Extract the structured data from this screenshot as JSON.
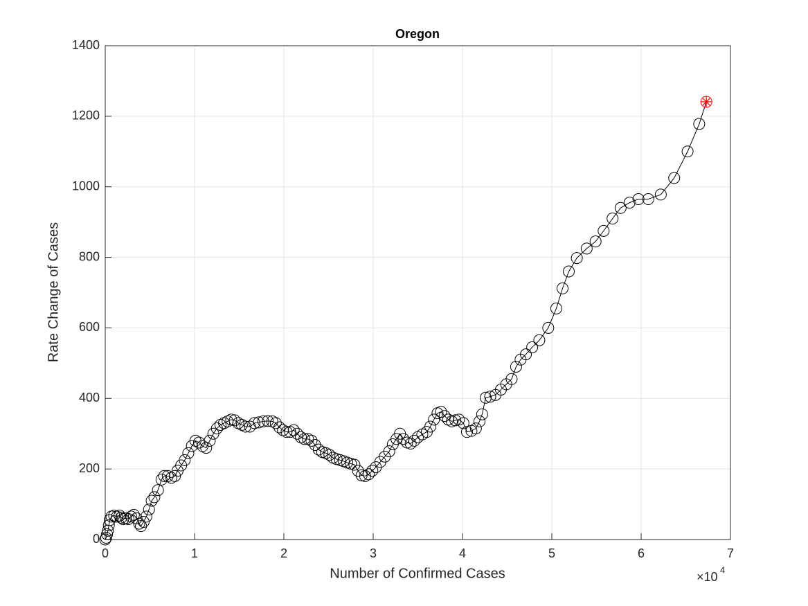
{
  "chart_data": {
    "type": "line",
    "title": "Oregon",
    "x_label": "Number of Confirmed Cases",
    "y_label": "Rate Change of Cases",
    "x_multiplier": "×10",
    "x_multiplier_exponent": "4",
    "x": [
      0,
      100,
      200,
      300,
      400,
      500,
      700,
      1000,
      1300,
      1600,
      1800,
      2000,
      2300,
      2600,
      2900,
      3200,
      3500,
      3800,
      4000,
      4300,
      4600,
      4900,
      5200,
      5500,
      5900,
      6300,
      6600,
      7000,
      7400,
      7800,
      8100,
      8500,
      8900,
      9300,
      9700,
      10100,
      10500,
      10900,
      11300,
      11700,
      12100,
      12500,
      12900,
      13300,
      13700,
      14100,
      14500,
      14900,
      15300,
      15700,
      16200,
      16700,
      17200,
      17700,
      18200,
      18700,
      19100,
      19500,
      19900,
      20300,
      20700,
      21100,
      21500,
      21900,
      22300,
      22700,
      23100,
      23500,
      23900,
      24300,
      24700,
      25100,
      25500,
      25900,
      26300,
      26700,
      27100,
      27500,
      27900,
      28300,
      28700,
      29100,
      29500,
      29900,
      30300,
      30800,
      31300,
      31800,
      32200,
      32600,
      33000,
      33400,
      33800,
      34200,
      34600,
      35000,
      35500,
      36000,
      36400,
      36800,
      37200,
      37600,
      38000,
      38400,
      38800,
      39200,
      39600,
      40100,
      40500,
      41000,
      41500,
      41900,
      42200,
      42600,
      43100,
      43700,
      44300,
      44900,
      45500,
      46000,
      46500,
      47100,
      47800,
      48600,
      49600,
      50500,
      51200,
      51900,
      52800,
      53900,
      54900,
      55800,
      56800,
      57700,
      58700,
      59700,
      60800,
      62200,
      63700,
      65200,
      66500,
      67300
    ],
    "values": [
      0,
      5,
      15,
      25,
      40,
      55,
      65,
      68,
      65,
      68,
      62,
      58,
      60,
      58,
      65,
      70,
      60,
      45,
      38,
      50,
      65,
      85,
      110,
      120,
      140,
      170,
      180,
      180,
      175,
      180,
      195,
      210,
      225,
      245,
      265,
      280,
      275,
      265,
      260,
      280,
      300,
      315,
      325,
      330,
      335,
      340,
      338,
      330,
      325,
      320,
      320,
      330,
      332,
      335,
      336,
      335,
      330,
      318,
      310,
      305,
      305,
      310,
      300,
      290,
      285,
      285,
      280,
      268,
      255,
      248,
      245,
      240,
      232,
      228,
      225,
      222,
      218,
      215,
      212,
      195,
      182,
      180,
      185,
      195,
      205,
      220,
      235,
      250,
      270,
      285,
      300,
      285,
      275,
      272,
      280,
      290,
      298,
      305,
      320,
      340,
      358,
      362,
      350,
      340,
      335,
      338,
      340,
      330,
      305,
      308,
      315,
      335,
      355,
      402,
      405,
      410,
      425,
      440,
      455,
      490,
      510,
      525,
      545,
      565,
      600,
      655,
      712,
      760,
      798,
      825,
      845,
      875,
      910,
      940,
      955,
      965,
      965,
      978,
      1025,
      1100,
      1178,
      1241
    ],
    "color": "#000000",
    "highlight_last": true,
    "highlight_color": "#ff0000",
    "xlim": [
      0,
      70000
    ],
    "xticks": [
      0,
      {
        "value": 10000,
        "label": "1"
      },
      {
        "value": 20000,
        "label": "2"
      },
      {
        "value": 30000,
        "label": "3"
      },
      {
        "value": 40000,
        "label": "4"
      },
      {
        "value": 50000,
        "label": "5"
      },
      {
        "value": 60000,
        "label": "6"
      },
      {
        "value": 70000,
        "label": "7"
      }
    ],
    "ylim": [
      0,
      1400
    ],
    "yticks": [
      0,
      200,
      400,
      600,
      800,
      1000,
      1200,
      1400
    ],
    "grid": true
  }
}
